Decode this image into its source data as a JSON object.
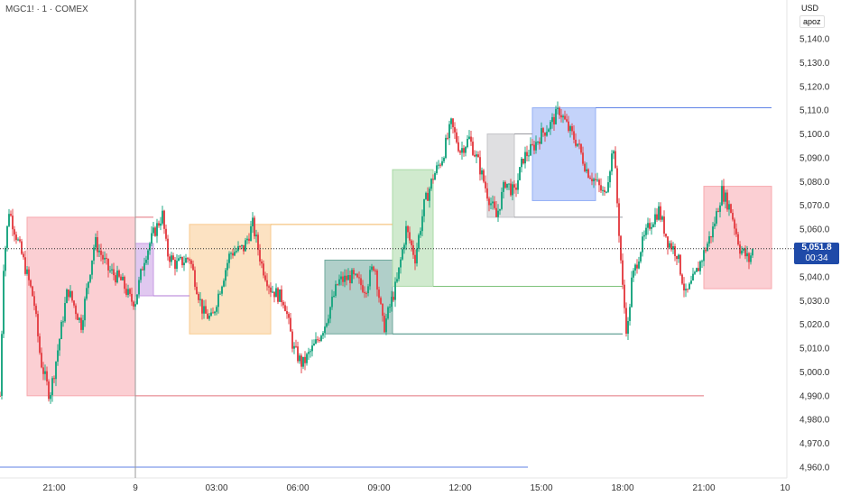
{
  "header": {
    "symbol": "MGC1! · 1 · COMEX",
    "currency": "USD",
    "unit_label": "apoz"
  },
  "last_price": {
    "price": "5,051.8",
    "countdown": "00:34",
    "value": 5051.8,
    "color": "#1f4aa8"
  },
  "chart_data": {
    "type": "candlestick",
    "title": "",
    "xlabel": "",
    "ylabel": "",
    "ylim": [
      4955,
      5150
    ],
    "x_ticks": [
      "21:00",
      "9",
      "03:00",
      "06:00",
      "09:00",
      "12:00",
      "15:00",
      "18:00",
      "21:00",
      "10"
    ],
    "y_ticks": [
      4960,
      4970,
      4980,
      4990,
      5000,
      5010,
      5020,
      5030,
      5040,
      5050,
      5060,
      5070,
      5080,
      5090,
      5100,
      5110,
      5120,
      5130,
      5140
    ],
    "y_tick_labels": [
      "4,960.0",
      "4,970.0",
      "4,980.0",
      "4,990.0",
      "5,000.0",
      "5,010.0",
      "5,020.0",
      "5,030.0",
      "5,040.0",
      "5,050.0",
      "5,060.0",
      "5,070.0",
      "5,080.0",
      "5,090.0",
      "5,100.0",
      "5,110.0",
      "5,120.0",
      "5,130.0",
      "5,140.0"
    ],
    "price_path": [
      [
        "19:00",
        4990
      ],
      [
        "19:08",
        5045
      ],
      [
        "19:20",
        5068
      ],
      [
        "19:50",
        5048
      ],
      [
        "20:15",
        5030
      ],
      [
        "20:30",
        5005
      ],
      [
        "20:50",
        4990
      ],
      [
        "21:00",
        5000
      ],
      [
        "21:30",
        5035
      ],
      [
        "22:00",
        5020
      ],
      [
        "22:30",
        5055
      ],
      [
        "23:00",
        5043
      ],
      [
        "23:30",
        5038
      ],
      [
        "23:50",
        5030
      ],
      [
        "00:00",
        5030
      ],
      [
        "00:20",
        5048
      ],
      [
        "00:40",
        5058
      ],
      [
        "01:00",
        5066
      ],
      [
        "01:10",
        5050
      ],
      [
        "01:30",
        5045
      ],
      [
        "02:00",
        5048
      ],
      [
        "02:30",
        5025
      ],
      [
        "02:50",
        5022
      ],
      [
        "03:00",
        5030
      ],
      [
        "03:30",
        5050
      ],
      [
        "04:00",
        5052
      ],
      [
        "04:20",
        5062
      ],
      [
        "04:40",
        5045
      ],
      [
        "05:00",
        5035
      ],
      [
        "05:30",
        5030
      ],
      [
        "05:50",
        5010
      ],
      [
        "06:10",
        5003
      ],
      [
        "06:40",
        5012
      ],
      [
        "07:00",
        5020
      ],
      [
        "07:30",
        5038
      ],
      [
        "08:00",
        5040
      ],
      [
        "08:30",
        5035
      ],
      [
        "08:50",
        5046
      ],
      [
        "09:10",
        5018
      ],
      [
        "09:40",
        5038
      ],
      [
        "10:00",
        5060
      ],
      [
        "10:20",
        5048
      ],
      [
        "10:40",
        5070
      ],
      [
        "11:00",
        5082
      ],
      [
        "11:20",
        5090
      ],
      [
        "11:40",
        5104
      ],
      [
        "12:00",
        5093
      ],
      [
        "12:20",
        5098
      ],
      [
        "12:40",
        5088
      ],
      [
        "13:00",
        5075
      ],
      [
        "13:20",
        5065
      ],
      [
        "13:40",
        5080
      ],
      [
        "14:00",
        5075
      ],
      [
        "14:20",
        5090
      ],
      [
        "14:40",
        5094
      ],
      [
        "15:00",
        5100
      ],
      [
        "15:20",
        5104
      ],
      [
        "15:40",
        5110
      ],
      [
        "16:00",
        5102
      ],
      [
        "16:20",
        5096
      ],
      [
        "16:40",
        5085
      ],
      [
        "17:00",
        5080
      ],
      [
        "17:20",
        5074
      ],
      [
        "17:40",
        5095
      ],
      [
        "18:00",
        5035
      ],
      [
        "18:10",
        5015
      ],
      [
        "18:20",
        5038
      ],
      [
        "18:40",
        5052
      ],
      [
        "19:00",
        5062
      ],
      [
        "19:20",
        5068
      ],
      [
        "19:40",
        5055
      ],
      [
        "20:00",
        5050
      ],
      [
        "20:20",
        5032
      ],
      [
        "20:40",
        5040
      ],
      [
        "21:00",
        5050
      ],
      [
        "21:20",
        5060
      ],
      [
        "21:40",
        5076
      ],
      [
        "22:00",
        5068
      ],
      [
        "22:20",
        5052
      ],
      [
        "22:40",
        5047
      ],
      [
        "22:50",
        5052
      ]
    ],
    "zones": [
      {
        "x_start": "20:00",
        "x_end": "00:00",
        "y_low": 4990,
        "y_high": 5065,
        "color": "#f7a8ae"
      },
      {
        "x_start": "00:00",
        "x_end": "00:40",
        "y_low": 5032,
        "y_high": 5054,
        "color": "#c79be3"
      },
      {
        "x_start": "02:00",
        "x_end": "05:00",
        "y_low": 5016,
        "y_high": 5062,
        "color": "#f9cb8f"
      },
      {
        "x_start": "07:00",
        "x_end": "09:30",
        "y_low": 5016,
        "y_high": 5047,
        "color": "#6fa89c"
      },
      {
        "x_start": "09:30",
        "x_end": "11:00",
        "y_low": 5036,
        "y_high": 5085,
        "color": "#a9d9a6"
      },
      {
        "x_start": "13:00",
        "x_end": "14:00",
        "y_low": 5065,
        "y_high": 5100,
        "color": "#c4c4c8"
      },
      {
        "x_start": "14:40",
        "x_end": "17:00",
        "y_low": 5072,
        "y_high": 5111,
        "color": "#93aff5"
      },
      {
        "x_start": "21:00",
        "x_end": "23:30",
        "y_low": 5035,
        "y_high": 5078,
        "color": "#f7a8ae"
      }
    ],
    "level_lines": [
      {
        "y": 4990,
        "x_start": "00:00",
        "x_end": "21:00",
        "color": "#e2737c"
      },
      {
        "y": 5065,
        "x_start": "00:00",
        "x_end": "00:40",
        "color": "#e2737c"
      },
      {
        "y": 5032,
        "x_start": "00:40",
        "x_end": "02:00",
        "color": "#b07ad6"
      },
      {
        "y": 5062,
        "x_start": "05:00",
        "x_end": "09:30",
        "color": "#f3b863"
      },
      {
        "y": 5016,
        "x_start": "09:30",
        "x_end": "18:00",
        "color": "#3f8a7e"
      },
      {
        "y": 5036,
        "x_start": "11:00",
        "x_end": "18:00",
        "color": "#7ec27a"
      },
      {
        "y": 5065,
        "x_start": "14:00",
        "x_end": "18:00",
        "color": "#9a9aa0"
      },
      {
        "y": 5100,
        "x_start": "14:00",
        "x_end": "14:40",
        "color": "#9a9aa0"
      },
      {
        "y": 5111,
        "x_start": "17:00",
        "x_end": "23:30",
        "color": "#5f82e6"
      },
      {
        "y": 4960,
        "x_start": "19:00",
        "x_end": "14:30",
        "color": "#5f82e6"
      }
    ],
    "grid": false,
    "up_color": "#22a884",
    "down_color": "#e5484d"
  }
}
